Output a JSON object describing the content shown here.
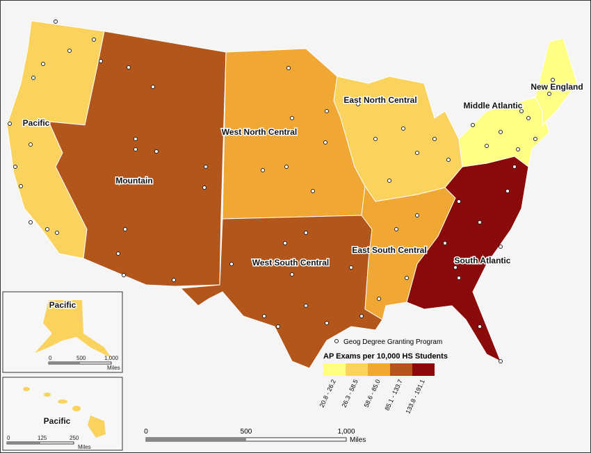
{
  "regions": {
    "pacific": "Pacific",
    "mountain": "Mountain",
    "west_north_central": "West North Central",
    "west_south_central": "West South Central",
    "east_north_central": "East North Central",
    "east_south_central": "East South Central",
    "south_atlantic": "South Atlantic",
    "middle_atlantic": "Middle Atlantic",
    "new_england": "New England",
    "alaska": "Pacific",
    "hawaii": "Pacific"
  },
  "legend": {
    "point_label": "Geog Degree Granting Program",
    "title": "AP Exams per 10,000 HS Students",
    "classes": [
      {
        "label": "20.8 - 26.2",
        "color": "#ffff85"
      },
      {
        "label": "26.3 - 58.5",
        "color": "#fad35e"
      },
      {
        "label": "58.6 - 85.0",
        "color": "#f0a733"
      },
      {
        "label": "85.1 - 133.7",
        "color": "#b2561c"
      },
      {
        "label": "133.8 - 191.1",
        "color": "#8a0a0a"
      }
    ]
  },
  "main_scale": {
    "ticks": [
      "0",
      "500",
      "1,000"
    ],
    "unit": "Miles"
  },
  "alaska_scale": {
    "ticks": [
      "0",
      "500",
      "1,000"
    ],
    "unit": "Miles"
  },
  "hawaii_scale": {
    "ticks": [
      "0",
      "125",
      "250"
    ],
    "unit": "Miles"
  }
}
